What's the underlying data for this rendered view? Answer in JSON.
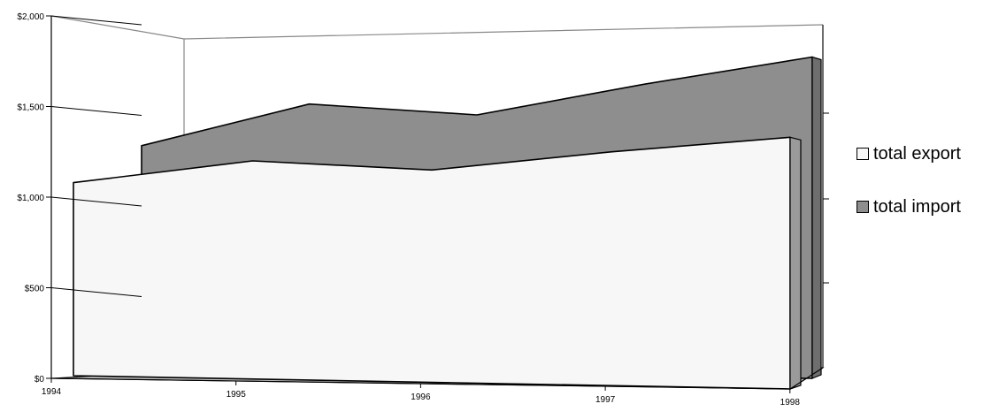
{
  "chart_data": {
    "type": "area",
    "variant": "3d",
    "title": "",
    "xlabel": "",
    "ylabel": "",
    "x": [
      "1994",
      "1995",
      "1996",
      "1997",
      "1998"
    ],
    "y_tick_labels": [
      "$0",
      "$500",
      "$1,000",
      "$1,500",
      "$2,000"
    ],
    "ylim": [
      0,
      2000
    ],
    "legend_position": "right",
    "series": [
      {
        "name": "total export",
        "values": [
          1080,
          1200,
          1150,
          1250,
          1330
        ],
        "color": "#f7f7f7"
      },
      {
        "name": "total import",
        "values": [
          1450,
          1670,
          1600,
          1760,
          1900
        ],
        "color": "#8e8e8e"
      }
    ]
  }
}
